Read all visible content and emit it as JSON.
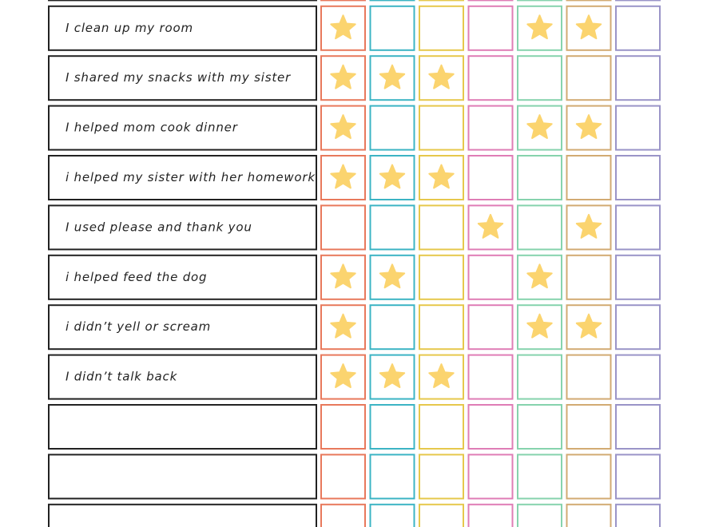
{
  "rows": [
    {
      "task": null,
      "stars": [
        0,
        0,
        0,
        0,
        0,
        0,
        0
      ]
    },
    {
      "task": "I clean up my room",
      "stars": [
        1,
        0,
        0,
        0,
        1,
        1,
        0
      ]
    },
    {
      "task": "I shared my snacks with my sister",
      "stars": [
        1,
        1,
        1,
        0,
        0,
        0,
        0
      ]
    },
    {
      "task": "I helped mom cook dinner",
      "stars": [
        1,
        0,
        0,
        0,
        1,
        1,
        0
      ]
    },
    {
      "task": "i helped my sister with her homework",
      "stars": [
        1,
        1,
        1,
        0,
        0,
        0,
        0
      ]
    },
    {
      "task": "I used please and thank you",
      "stars": [
        0,
        0,
        0,
        1,
        0,
        1,
        0
      ]
    },
    {
      "task": "i helped feed the dog",
      "stars": [
        1,
        1,
        0,
        0,
        1,
        0,
        0
      ]
    },
    {
      "task": "i didn’t yell or scream",
      "stars": [
        1,
        0,
        0,
        0,
        1,
        1,
        0
      ]
    },
    {
      "task": "I didn’t talk back",
      "stars": [
        1,
        1,
        1,
        0,
        0,
        0,
        0
      ]
    },
    {
      "task": null,
      "stars": [
        0,
        0,
        0,
        0,
        0,
        0,
        0
      ]
    },
    {
      "task": null,
      "stars": [
        0,
        0,
        0,
        0,
        0,
        0,
        0
      ]
    },
    {
      "task": null,
      "stars": [
        0,
        0,
        0,
        0,
        0,
        0,
        0
      ]
    }
  ],
  "column_colors": [
    "#e8795c",
    "#3cb4c4",
    "#e6c84c",
    "#df7db6",
    "#86d3ad",
    "#d2ab73",
    "#9a94c8"
  ],
  "star_color": "#fbd46f"
}
